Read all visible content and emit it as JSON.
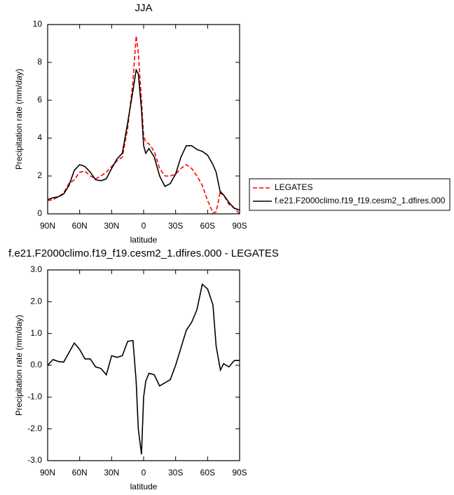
{
  "chart_data": [
    {
      "type": "line",
      "title": "JJA",
      "x_label": "latitude",
      "y_label": "Precipitation rate (mm/day)",
      "x": [
        90,
        85,
        80,
        75,
        70,
        65,
        60,
        55,
        50,
        45,
        40,
        35,
        30,
        25,
        20,
        15,
        10,
        7,
        5,
        2,
        0,
        -2,
        -5,
        -10,
        -15,
        -20,
        -25,
        -30,
        -35,
        -40,
        -45,
        -50,
        -55,
        -60,
        -65,
        -68,
        -72,
        -75,
        -80,
        -85,
        -90
      ],
      "series": [
        {
          "name": "LEGATES",
          "color": "#ff0000",
          "line_style": "dashed",
          "values": [
            0.7,
            0.75,
            0.9,
            1.1,
            1.6,
            1.8,
            2.2,
            2.25,
            2.0,
            1.85,
            2.0,
            2.2,
            2.5,
            2.8,
            3.0,
            4.5,
            7.0,
            9.4,
            8.5,
            6.0,
            4.1,
            3.8,
            3.7,
            3.3,
            2.4,
            2.0,
            2.0,
            2.1,
            2.4,
            2.6,
            2.4,
            2.0,
            1.5,
            0.7,
            0.05,
            0.1,
            1.2,
            1.0,
            0.5,
            0.3,
            0.0
          ]
        },
        {
          "name": "f.e21.F2000climo.f19_f19.cesm2_1.dfires.000",
          "color": "#000000",
          "line_style": "solid",
          "values": [
            0.75,
            0.85,
            0.9,
            1.05,
            1.5,
            2.3,
            2.6,
            2.5,
            2.2,
            1.8,
            1.75,
            1.85,
            2.4,
            2.9,
            3.2,
            4.8,
            6.5,
            7.6,
            7.4,
            5.5,
            3.6,
            3.2,
            3.45,
            3.0,
            2.0,
            1.45,
            1.6,
            2.1,
            3.0,
            3.6,
            3.6,
            3.4,
            3.3,
            3.1,
            2.6,
            2.2,
            1.1,
            1.0,
            0.6,
            0.3,
            0.2
          ]
        }
      ],
      "xlim": [
        90,
        -90
      ],
      "xticks": [
        {
          "value": 90,
          "label": "90N"
        },
        {
          "value": 60,
          "label": "60N"
        },
        {
          "value": 30,
          "label": "30N"
        },
        0,
        {
          "value": -30,
          "label": "30S"
        },
        {
          "value": -60,
          "label": "60S"
        },
        {
          "value": -90,
          "label": "90S"
        }
      ],
      "ylim": [
        0,
        10
      ],
      "yticks": [
        0,
        2,
        4,
        6,
        8,
        10
      ],
      "legend": "right"
    },
    {
      "type": "line",
      "title": "f.e21.F2000climo.f19_f19.cesm2_1.dfires.000 - LEGATES",
      "x_label": "latitude",
      "y_label": "Precipitation rate (mm/day)",
      "x": [
        90,
        85,
        80,
        75,
        70,
        65,
        60,
        55,
        50,
        45,
        40,
        35,
        30,
        25,
        20,
        15,
        10,
        7,
        5,
        2,
        0,
        -2,
        -5,
        -10,
        -15,
        -20,
        -25,
        -30,
        -35,
        -40,
        -45,
        -50,
        -55,
        -60,
        -65,
        -68,
        -72,
        -75,
        -80,
        -85,
        -90
      ],
      "color": "#000000",
      "line_style": "solid",
      "values": [
        0.0,
        0.18,
        0.12,
        0.1,
        0.4,
        0.7,
        0.5,
        0.2,
        0.2,
        -0.05,
        -0.1,
        -0.3,
        0.3,
        0.25,
        0.3,
        0.75,
        0.78,
        -0.5,
        -2.0,
        -2.8,
        -1.0,
        -0.5,
        -0.25,
        -0.3,
        -0.65,
        -0.55,
        -0.45,
        0.0,
        0.55,
        1.1,
        1.35,
        1.75,
        2.55,
        2.4,
        1.9,
        0.6,
        -0.15,
        0.05,
        -0.05,
        0.15,
        0.15
      ],
      "xlim": [
        90,
        -90
      ],
      "xticks": [
        {
          "value": 90,
          "label": "90N"
        },
        {
          "value": 60,
          "label": "60N"
        },
        {
          "value": 30,
          "label": "30N"
        },
        0,
        {
          "value": -30,
          "label": "30S"
        },
        {
          "value": -60,
          "label": "60S"
        },
        {
          "value": -90,
          "label": "90S"
        }
      ],
      "ylim": [
        -3,
        3
      ],
      "yticks": [
        {
          "value": -3,
          "label": "-3.0"
        },
        {
          "value": -2,
          "label": "-2.0"
        },
        {
          "value": -1,
          "label": "-1.0"
        },
        {
          "value": 0,
          "label": "0.0"
        },
        {
          "value": 1,
          "label": "1.0"
        },
        {
          "value": 2,
          "label": "2.0"
        },
        {
          "value": 3,
          "label": "3.0"
        }
      ]
    }
  ]
}
